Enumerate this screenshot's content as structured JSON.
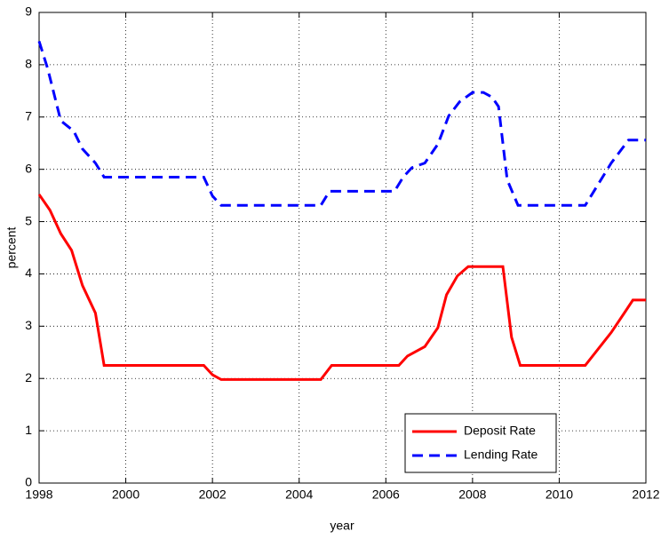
{
  "chart_data": {
    "type": "line",
    "xlabel": "year",
    "ylabel": "percent",
    "xlim": [
      1998,
      2012
    ],
    "xticks": [
      1998,
      2000,
      2002,
      2004,
      2006,
      2008,
      2010,
      2012
    ],
    "ylim": [
      0,
      9
    ],
    "yticks": [
      0,
      1,
      2,
      3,
      4,
      5,
      6,
      7,
      8,
      9
    ],
    "grid": true,
    "legend": "lower right",
    "series": [
      {
        "name": "Deposit Rate",
        "color": "#ff0000",
        "linestyle": "solid",
        "x": [
          1998.0,
          1998.25,
          1998.5,
          1998.75,
          1999.0,
          1999.3,
          1999.5,
          2001.8,
          2002.0,
          2002.2,
          2004.5,
          2004.75,
          2006.3,
          2006.5,
          2006.9,
          2007.2,
          2007.4,
          2007.65,
          2007.9,
          2008.7,
          2008.9,
          2009.1,
          2010.6,
          2011.2,
          2011.5,
          2011.7,
          2012.0
        ],
        "values": [
          5.52,
          5.22,
          4.77,
          4.45,
          3.78,
          3.25,
          2.25,
          2.25,
          2.07,
          1.98,
          1.98,
          2.25,
          2.25,
          2.43,
          2.61,
          2.97,
          3.6,
          3.96,
          4.14,
          4.14,
          2.79,
          2.25,
          2.25,
          2.88,
          3.25,
          3.5,
          3.5
        ]
      },
      {
        "name": "Lending Rate",
        "color": "#0000ff",
        "linestyle": "dashed",
        "x": [
          1998.0,
          1998.2,
          1998.5,
          1998.8,
          1999.0,
          1999.3,
          1999.5,
          2001.8,
          2002.0,
          2002.2,
          2004.5,
          2004.7,
          2006.2,
          2006.4,
          2006.6,
          2006.9,
          2007.2,
          2007.45,
          2007.7,
          2008.0,
          2008.25,
          2008.45,
          2008.6,
          2008.8,
          2009.05,
          2010.6,
          2011.2,
          2011.6,
          2012.0
        ],
        "values": [
          8.45,
          7.92,
          6.93,
          6.73,
          6.39,
          6.12,
          5.85,
          5.85,
          5.49,
          5.31,
          5.31,
          5.58,
          5.58,
          5.85,
          6.03,
          6.12,
          6.48,
          7.02,
          7.29,
          7.47,
          7.47,
          7.38,
          7.2,
          5.8,
          5.31,
          5.31,
          6.12,
          6.56,
          6.56
        ]
      }
    ]
  }
}
